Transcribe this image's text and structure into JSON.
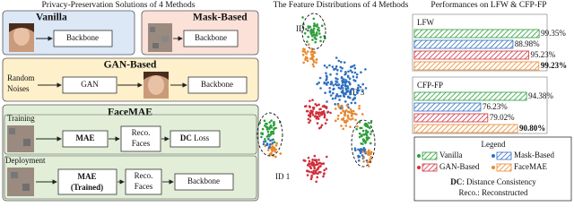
{
  "left": {
    "title": "Privacy-Preservation Solutions of 4 Methods",
    "vanilla": {
      "title": "Vanilla",
      "box": "Backbone"
    },
    "mask": {
      "title": "Mask-Based",
      "box": "Backbone"
    },
    "gan": {
      "title": "GAN-Based",
      "input": [
        "Random",
        "Noises"
      ],
      "generator": "GAN",
      "box": "Backbone"
    },
    "facemae": {
      "title": "FaceMAE",
      "training": {
        "label": "Training",
        "mae": "MAE",
        "reco": [
          "Reco.",
          "Faces"
        ],
        "dc": "DC",
        "loss": "Loss"
      },
      "deployment": {
        "label": "Deployment",
        "mae": "MAE",
        "trained": "(Trained)",
        "reco": [
          "Reco.",
          "Faces"
        ],
        "box": "Backbone"
      }
    }
  },
  "middle": {
    "title": "The Feature Distributions of 4 Methods",
    "ids": [
      "ID 2",
      "ID 3",
      "ID 1"
    ]
  },
  "chart_data": {
    "type": "bar",
    "title": "Performances on LFW & CFP-FP",
    "categories": [
      "LFW",
      "CFP-FP"
    ],
    "xlim": [
      50,
      100
    ],
    "series": [
      {
        "name": "Vanilla",
        "color": "#2e9e3c",
        "values": [
          99.35,
          94.38
        ],
        "value_labels": [
          "99.35%",
          "94.38%"
        ]
      },
      {
        "name": "Mask-Based",
        "color": "#2f6fc0",
        "values": [
          88.98,
          76.23
        ],
        "value_labels": [
          "88.98%",
          "76.23%"
        ]
      },
      {
        "name": "GAN-Based",
        "color": "#d0303c",
        "values": [
          95.23,
          79.02
        ],
        "value_labels": [
          "95.23%",
          "79.02%"
        ]
      },
      {
        "name": "FaceMAE",
        "color": "#e8892e",
        "values": [
          99.23,
          90.8
        ],
        "value_labels": [
          "99.23%",
          "90.80%"
        ]
      }
    ],
    "legend_title": "Legend",
    "notes": [
      {
        "key": "DC",
        "text": ": Distance Consistency"
      },
      {
        "key": "",
        "text": "Reco.: Reconstructed"
      }
    ]
  }
}
